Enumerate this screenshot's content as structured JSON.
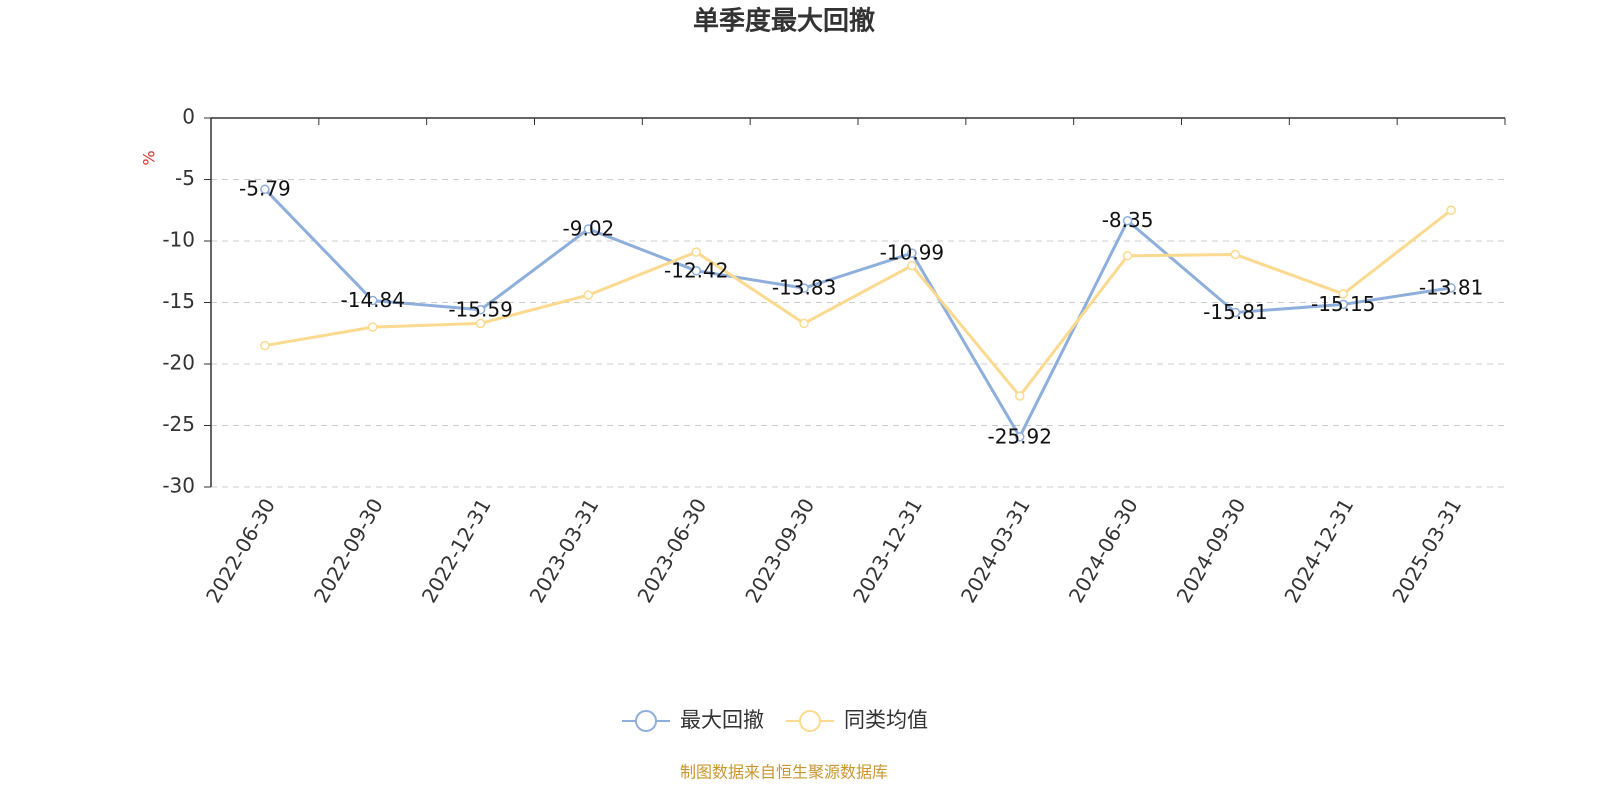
{
  "chart_data": {
    "type": "line",
    "title": "单季度最大回撤",
    "y_label": "%",
    "source": "制图数据来自恒生聚源数据库",
    "categories": [
      "2022-06-30",
      "2022-09-30",
      "2022-12-31",
      "2023-03-31",
      "2023-06-30",
      "2023-09-30",
      "2023-12-31",
      "2024-03-31",
      "2024-06-30",
      "2024-09-30",
      "2024-12-31",
      "2025-03-31"
    ],
    "series": [
      {
        "name": "最大回撤",
        "color": "#8eaedc",
        "data_labels": true,
        "values": [
          -5.79,
          -14.84,
          -15.59,
          -9.02,
          -12.42,
          -13.83,
          -10.99,
          -25.92,
          -8.35,
          -15.81,
          -15.15,
          -13.81
        ]
      },
      {
        "name": "同类均值",
        "color": "#fbd98f",
        "data_labels": false,
        "values": [
          -18.5,
          -17.0,
          -16.7,
          -14.4,
          -10.9,
          -16.7,
          -12.0,
          -22.6,
          -11.2,
          -11.1,
          -14.3,
          -7.5
        ]
      }
    ],
    "ylim": [
      -30,
      0
    ],
    "yticks": [
      0,
      -5,
      -10,
      -15,
      -20,
      -25,
      -30
    ],
    "grid": true
  }
}
